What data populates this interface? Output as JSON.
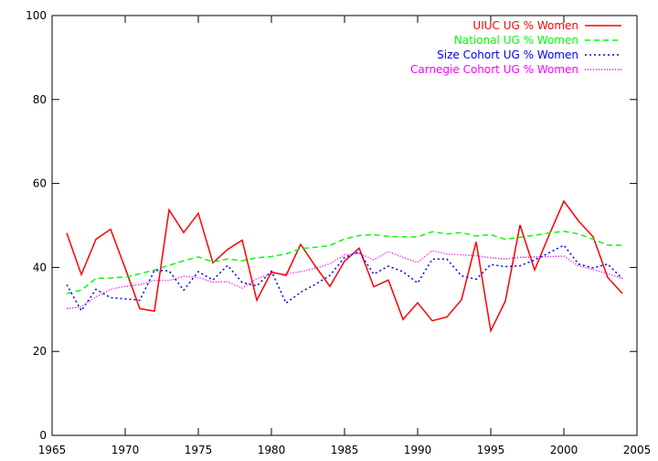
{
  "chart_data": {
    "type": "line",
    "title": "",
    "xlabel": "",
    "ylabel": "",
    "xlim": [
      1965,
      2005
    ],
    "ylim": [
      0,
      100
    ],
    "xticks": [
      1965,
      1970,
      1975,
      1980,
      1985,
      1990,
      1995,
      2000,
      2005
    ],
    "yticks": [
      0,
      20,
      40,
      60,
      80,
      100
    ],
    "grid": false,
    "legend": "top-right",
    "x": [
      1966,
      1967,
      1968,
      1969,
      1970,
      1971,
      1972,
      1973,
      1974,
      1975,
      1976,
      1977,
      1978,
      1979,
      1980,
      1981,
      1982,
      1983,
      1984,
      1985,
      1986,
      1987,
      1988,
      1989,
      1990,
      1991,
      1992,
      1993,
      1994,
      1995,
      1996,
      1997,
      1998,
      1999,
      2000,
      2001,
      2002,
      2003,
      2004
    ],
    "series": [
      {
        "name": "UIUC UG % Women",
        "color": "#ff0000",
        "dash": "solid",
        "values": [
          48.2,
          38.3,
          46.7,
          49.1,
          39.8,
          30.2,
          29.6,
          53.7,
          48.3,
          52.9,
          41.1,
          44.3,
          46.5,
          32.2,
          38.9,
          38.1,
          45.5,
          40.3,
          35.5,
          41.5,
          44.6,
          35.4,
          37.0,
          27.6,
          31.6,
          27.3,
          28.2,
          32.3,
          46.1,
          24.9,
          32.0,
          50.1,
          39.4,
          47.8,
          55.8,
          51.1,
          47.3,
          37.6,
          33.8
        ]
      },
      {
        "name": "National UG % Women",
        "color": "#00ff00",
        "dash": "dashed",
        "values": [
          33.8,
          34.6,
          37.4,
          37.5,
          37.7,
          38.5,
          39.4,
          40.5,
          41.6,
          42.5,
          41.3,
          42.0,
          41.6,
          42.3,
          42.6,
          43.2,
          44.5,
          44.8,
          45.2,
          46.8,
          47.6,
          47.8,
          47.4,
          47.3,
          47.3,
          48.5,
          48.0,
          48.3,
          47.5,
          47.8,
          46.7,
          47.2,
          47.7,
          48.2,
          48.6,
          48.0,
          46.7,
          45.3,
          45.3
        ]
      },
      {
        "name": "Size Cohort UG % Women",
        "color": "#0000ff",
        "dash": "dotted",
        "values": [
          35.9,
          29.7,
          34.8,
          32.8,
          32.5,
          32.2,
          39.3,
          39.2,
          34.6,
          39.0,
          37.0,
          40.5,
          36.4,
          35.6,
          39.1,
          31.5,
          34.1,
          36.0,
          38.1,
          42.4,
          43.7,
          38.4,
          40.3,
          39.0,
          36.3,
          42.0,
          42.0,
          38.0,
          37.2,
          40.7,
          40.2,
          40.4,
          41.8,
          43.5,
          45.3,
          40.8,
          39.9,
          40.8,
          37.3
        ]
      },
      {
        "name": "Carnegie Cohort UG % Women",
        "color": "#ff00ff",
        "dash": "dotted-fine",
        "values": [
          30.2,
          30.6,
          33.0,
          34.8,
          35.5,
          35.9,
          36.9,
          36.9,
          37.9,
          37.6,
          36.5,
          36.6,
          35.1,
          37.3,
          38.5,
          38.5,
          39.0,
          39.8,
          40.9,
          43.0,
          43.4,
          41.8,
          43.8,
          42.4,
          41.2,
          44.0,
          43.2,
          43.0,
          42.8,
          42.3,
          42.0,
          42.4,
          42.5,
          42.6,
          42.7,
          40.4,
          39.5,
          38.5,
          37.4
        ]
      }
    ]
  }
}
